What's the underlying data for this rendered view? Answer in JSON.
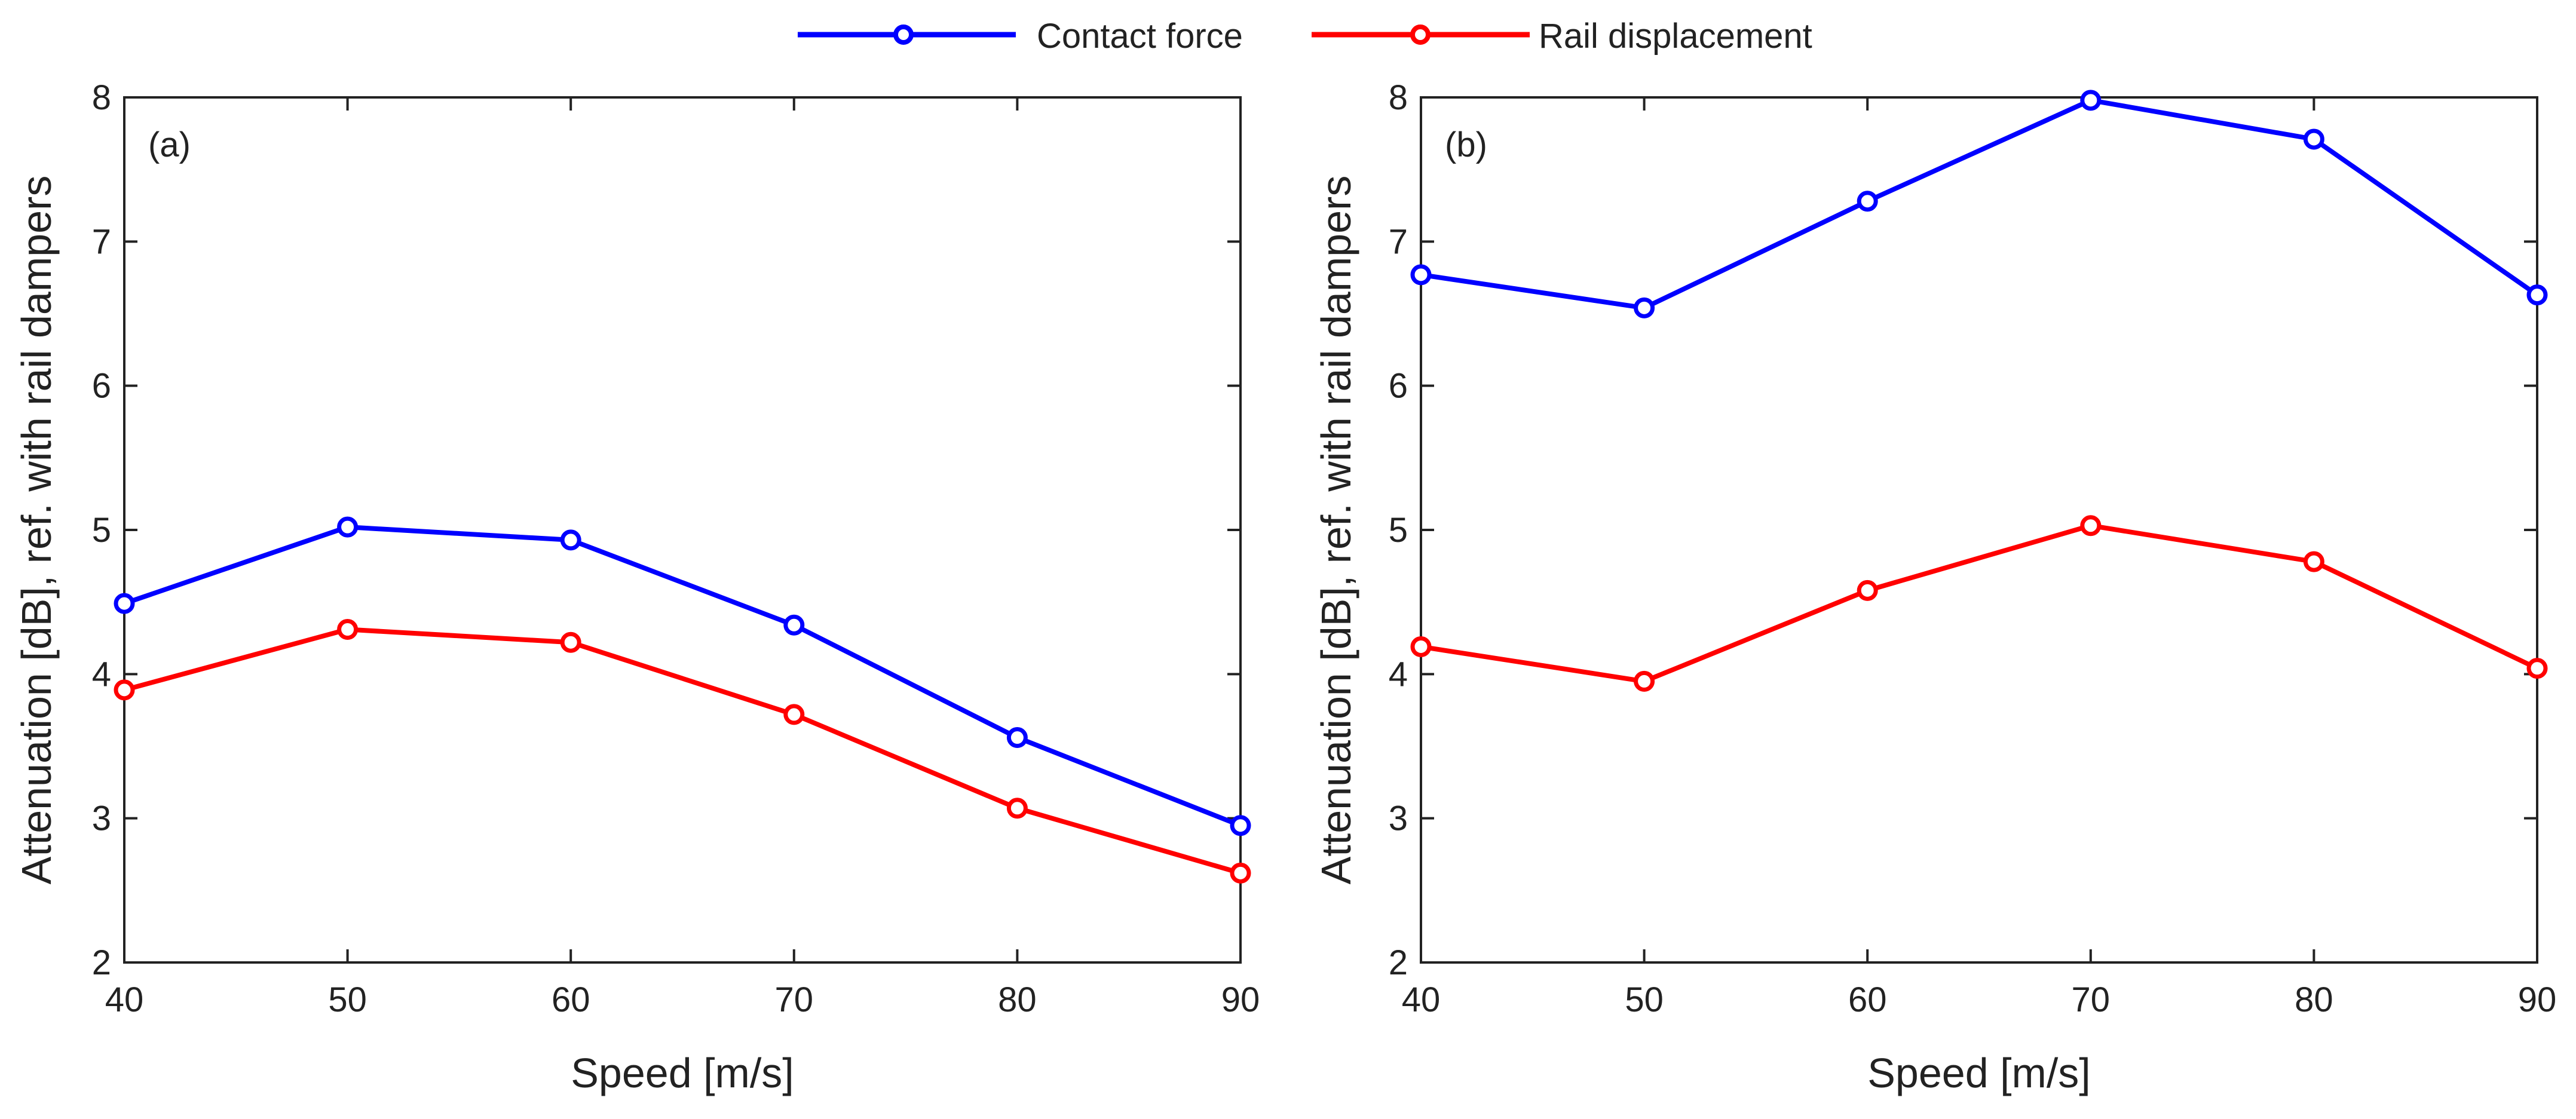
{
  "legend": {
    "position": "top-center",
    "entries": [
      {
        "name": "Contact force",
        "color": "#0000ff",
        "marker": "circle-open"
      },
      {
        "name": "Rail displacement",
        "color": "#ff0000",
        "marker": "circle-open"
      }
    ]
  },
  "chart_data": [
    {
      "type": "line",
      "panel_label": "(a)",
      "x": [
        40,
        50,
        60,
        70,
        80,
        90
      ],
      "series": [
        {
          "name": "Contact force",
          "color": "#0000ff",
          "values": [
            4.49,
            5.02,
            4.93,
            4.34,
            3.56,
            2.95
          ]
        },
        {
          "name": "Rail displacement",
          "color": "#ff0000",
          "values": [
            3.89,
            4.31,
            4.22,
            3.72,
            3.07,
            2.62
          ]
        }
      ],
      "xlabel": "Speed [m/s]",
      "ylabel": "Attenuation [dB], ref. with rail dampers",
      "xlim": [
        40,
        90
      ],
      "ylim": [
        2,
        8
      ],
      "xticks": [
        40,
        50,
        60,
        70,
        80,
        90
      ],
      "yticks": [
        2,
        3,
        4,
        5,
        6,
        7,
        8
      ],
      "grid": false
    },
    {
      "type": "line",
      "panel_label": "(b)",
      "x": [
        40,
        50,
        60,
        70,
        80,
        90
      ],
      "series": [
        {
          "name": "Contact force",
          "color": "#0000ff",
          "values": [
            6.77,
            6.54,
            7.28,
            7.98,
            7.71,
            6.63
          ]
        },
        {
          "name": "Rail displacement",
          "color": "#ff0000",
          "values": [
            4.19,
            3.95,
            4.58,
            5.03,
            4.78,
            4.04
          ]
        }
      ],
      "xlabel": "Speed [m/s]",
      "ylabel": "Attenuation [dB], ref. with rail dampers",
      "xlim": [
        40,
        90
      ],
      "ylim": [
        2,
        8
      ],
      "xticks": [
        40,
        50,
        60,
        70,
        80,
        90
      ],
      "yticks": [
        2,
        3,
        4,
        5,
        6,
        7,
        8
      ],
      "grid": false
    }
  ]
}
